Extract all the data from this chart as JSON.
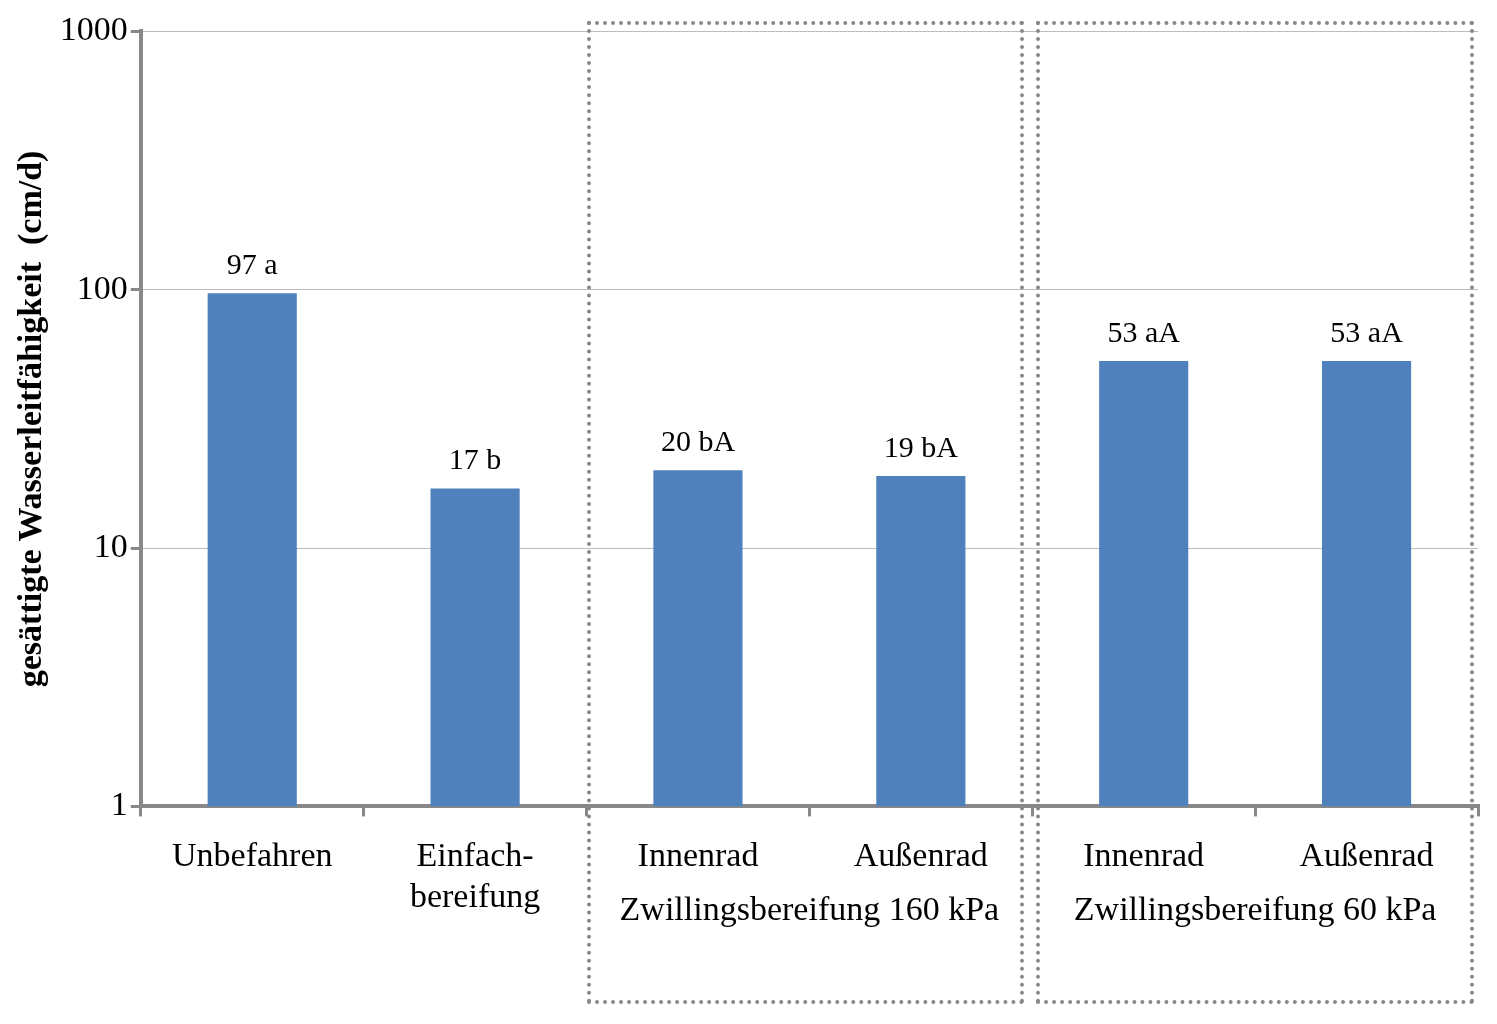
{
  "chart_data": {
    "type": "bar",
    "ylabel": "gesättigte Wasserleitfähigkeit  (cm/d)",
    "categories": [
      "Unbefahren",
      "Einfach-bereifung",
      "Innenrad",
      "Außenrad",
      "Innenrad",
      "Außenrad"
    ],
    "values": [
      97,
      17,
      20,
      19,
      53,
      53
    ],
    "value_labels": [
      "97 a",
      "17 b",
      "20 bA",
      "19 bA",
      "53 aA",
      "53 aA"
    ],
    "color": "#4f81bd",
    "log": "y",
    "ylim": [
      1,
      1000
    ],
    "yticks": [
      1,
      10,
      100,
      1000
    ],
    "grid": "y",
    "annotations": [
      "Zwillingsbereifung 160 kPa",
      "Zwillingsbereifung 60 kPa"
    ]
  }
}
